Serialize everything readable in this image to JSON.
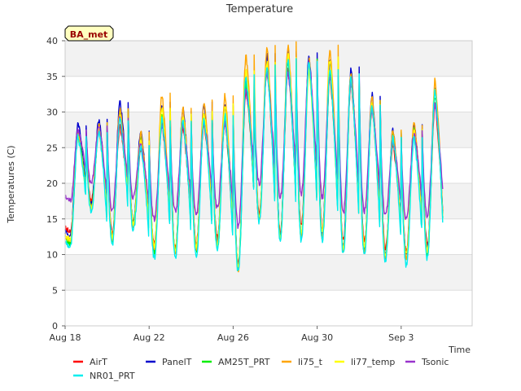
{
  "chart_data": {
    "type": "line",
    "title": "Temperature",
    "xlabel": "Time",
    "ylabel": "Temperatures (C)",
    "badge": "BA_met",
    "ylim": [
      0,
      40
    ],
    "yticks": [
      0,
      5,
      10,
      15,
      20,
      25,
      30,
      35,
      40
    ],
    "xlim": [
      0,
      18
    ],
    "xticks": [
      {
        "x": 0,
        "label": "Aug 18"
      },
      {
        "x": 4,
        "label": "Aug 22"
      },
      {
        "x": 8,
        "label": "Aug 26"
      },
      {
        "x": 12,
        "label": "Aug 30"
      },
      {
        "x": 16,
        "label": "Sep 3"
      }
    ],
    "grid": true,
    "legend_position": "bottom",
    "day_highs": [
      28.5,
      29,
      31.5,
      27.5,
      31,
      30.5,
      31,
      31,
      36,
      39,
      38.5,
      38,
      37,
      36,
      32,
      27,
      28.5,
      33.5
    ],
    "day_lows": [
      11,
      17,
      12,
      14,
      10,
      10,
      10,
      11,
      7.5,
      15,
      12,
      12.5,
      12.5,
      10.5,
      10.5,
      9.5,
      9,
      10
    ],
    "series": [
      {
        "name": "AirT",
        "color": "#ff0000",
        "highs": [
          26.5,
          27.5,
          28,
          25,
          28.5,
          28,
          28.5,
          28.5,
          33,
          36,
          36,
          37,
          35,
          34,
          30.5,
          25.5,
          27,
          31
        ],
        "lows": [
          13,
          17.5,
          13,
          15,
          11.5,
          11,
          11.5,
          12.5,
          9,
          16,
          13,
          14,
          13.5,
          12,
          12,
          11,
          10.5,
          11.5
        ]
      },
      {
        "name": "PanelT",
        "color": "#0000cc",
        "highs": [
          28.5,
          29,
          31.5,
          27.5,
          31,
          30.5,
          31,
          31,
          35,
          38,
          38.5,
          38,
          37,
          36,
          32.5,
          27.5,
          28.5,
          33.5
        ],
        "lows": [
          12.5,
          17,
          12.5,
          14.5,
          11,
          10.5,
          11,
          12,
          8.5,
          15,
          12.5,
          13,
          13,
          11,
          11,
          10,
          10,
          11
        ]
      },
      {
        "name": "AM25T_PRT",
        "color": "#00ee00",
        "highs": [
          27,
          28,
          30,
          26.5,
          29.5,
          29,
          29.5,
          29.5,
          34,
          37,
          37,
          37,
          35.5,
          35,
          31.5,
          27,
          27.5,
          32.5
        ],
        "lows": [
          11.5,
          16.5,
          12,
          14.5,
          10.5,
          10.5,
          10.5,
          11,
          8,
          15,
          12.5,
          12.5,
          12.5,
          10.5,
          10.5,
          9.5,
          9.5,
          10
        ]
      },
      {
        "name": "li75_t",
        "color": "#ffa500",
        "highs": [
          27,
          28.5,
          30.5,
          27,
          32.5,
          30.5,
          31.5,
          32.5,
          38,
          39,
          39.5,
          37.5,
          39,
          35.5,
          32,
          27.5,
          28.5,
          34.5
        ],
        "lows": [
          12,
          16.5,
          12,
          14,
          10.5,
          10,
          10.5,
          11.5,
          8,
          15,
          12,
          12.5,
          12.5,
          10.5,
          10.5,
          9.5,
          9.5,
          10.5
        ]
      },
      {
        "name": "li77_temp",
        "color": "#ffff00",
        "highs": [
          26.5,
          27.5,
          29.5,
          26,
          30.5,
          29.5,
          30,
          31,
          36,
          37,
          38,
          36,
          37.5,
          34.5,
          31,
          26.5,
          27.5,
          33
        ],
        "lows": [
          12,
          16.5,
          12.5,
          14.5,
          11,
          10.5,
          11,
          11.5,
          8.5,
          15.5,
          12.5,
          13,
          13,
          11,
          11,
          10,
          10,
          10.5
        ]
      },
      {
        "name": "Tsonic",
        "color": "#9933cc",
        "highs": [
          27.5,
          28,
          29,
          25.5,
          28,
          28,
          28.5,
          28.5,
          33,
          35.5,
          35.5,
          37,
          35,
          34,
          30.5,
          26,
          27,
          31
        ],
        "lows": [
          17.5,
          20,
          16,
          18,
          15,
          16,
          15.5,
          16.5,
          14,
          20,
          18,
          18.5,
          18,
          16,
          16,
          15.5,
          15,
          15.5
        ]
      },
      {
        "name": "NR01_PRT",
        "color": "#00eeee",
        "highs": [
          26.5,
          27.5,
          29,
          25,
          29,
          29,
          29,
          29.5,
          35,
          36.5,
          37.5,
          37,
          36,
          35,
          31,
          26.5,
          26.5,
          33
        ],
        "lows": [
          11,
          16,
          11.5,
          13.5,
          9.5,
          9.5,
          9.5,
          10.5,
          7.5,
          14.5,
          12,
          12,
          12,
          10,
          10,
          9,
          8.5,
          9.5
        ]
      }
    ]
  }
}
